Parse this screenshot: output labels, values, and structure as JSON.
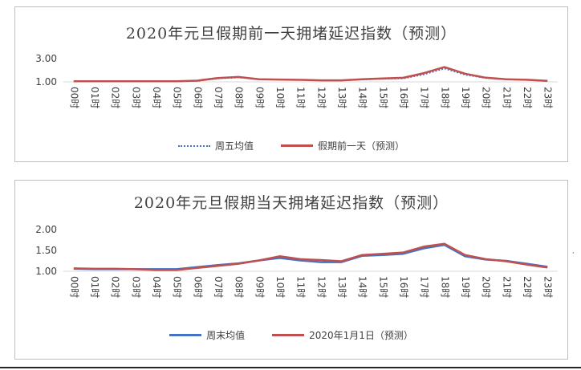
{
  "hours": [
    "00时",
    "01时",
    "02时",
    "03时",
    "04时",
    "05时",
    "06时",
    "07时",
    "08时",
    "09时",
    "10时",
    "11时",
    "12时",
    "13时",
    "14时",
    "15时",
    "16时",
    "17时",
    "18时",
    "19时",
    "20时",
    "21时",
    "22时",
    "23时"
  ],
  "colors": {
    "blue": "#4472C4",
    "red": "#C0504D",
    "axis": "#d9d9d9",
    "text": "#404040"
  },
  "chart_data": [
    {
      "type": "line",
      "title": "2020年元旦假期前一天拥堵延迟指数（预测）",
      "ylim": [
        1.0,
        3.0
      ],
      "yticks": [
        "1.00",
        "3.00"
      ],
      "grid": false,
      "legend": "bottom",
      "series": [
        {
          "name": "周五均值",
          "style": "dotted",
          "color": "#4472C4",
          "values": [
            1.05,
            1.05,
            1.05,
            1.05,
            1.05,
            1.05,
            1.08,
            1.3,
            1.38,
            1.23,
            1.2,
            1.17,
            1.13,
            1.13,
            1.2,
            1.27,
            1.3,
            1.65,
            2.15,
            1.62,
            1.33,
            1.22,
            1.17,
            1.07
          ]
        },
        {
          "name": "假期前一天（预测）",
          "style": "solid",
          "color": "#C0504D",
          "values": [
            1.05,
            1.05,
            1.05,
            1.05,
            1.05,
            1.05,
            1.1,
            1.33,
            1.42,
            1.23,
            1.2,
            1.17,
            1.13,
            1.13,
            1.22,
            1.3,
            1.35,
            1.75,
            2.27,
            1.7,
            1.36,
            1.23,
            1.18,
            1.08
          ]
        }
      ]
    },
    {
      "type": "line",
      "title": "2020年元旦假期当天拥堵延迟指数（预测）",
      "ylim": [
        1.0,
        2.0
      ],
      "yticks": [
        "1.00",
        "1.50",
        "2.00"
      ],
      "grid": false,
      "legend": "bottom",
      "series": [
        {
          "name": "周末均值",
          "style": "solid",
          "color": "#4472C4",
          "values": [
            1.06,
            1.05,
            1.05,
            1.05,
            1.05,
            1.05,
            1.1,
            1.15,
            1.19,
            1.26,
            1.32,
            1.26,
            1.22,
            1.22,
            1.37,
            1.39,
            1.42,
            1.55,
            1.63,
            1.36,
            1.28,
            1.25,
            1.18,
            1.11
          ]
        },
        {
          "name": "2020年1月1日（预测）",
          "style": "solid",
          "color": "#C0504D",
          "values": [
            1.07,
            1.06,
            1.06,
            1.05,
            1.03,
            1.03,
            1.08,
            1.13,
            1.18,
            1.26,
            1.36,
            1.29,
            1.27,
            1.24,
            1.39,
            1.42,
            1.45,
            1.59,
            1.66,
            1.39,
            1.29,
            1.24,
            1.16,
            1.09
          ]
        }
      ]
    }
  ]
}
